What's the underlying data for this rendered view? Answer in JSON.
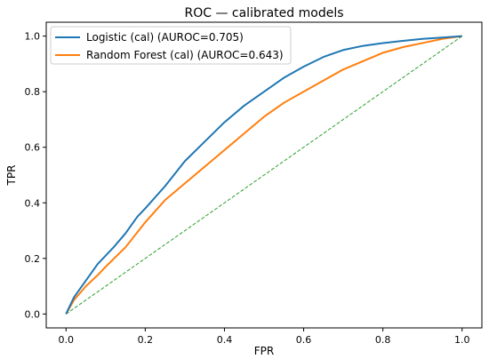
{
  "chart_data": {
    "type": "line",
    "title": "ROC — calibrated models",
    "xlabel": "FPR",
    "ylabel": "TPR",
    "xlim": [
      -0.05,
      1.05
    ],
    "ylim": [
      -0.05,
      1.05
    ],
    "xticks": [
      "0.0",
      "0.2",
      "0.4",
      "0.6",
      "0.8",
      "1.0"
    ],
    "yticks": [
      "0.0",
      "0.2",
      "0.4",
      "0.6",
      "0.8",
      "1.0"
    ],
    "grid": false,
    "legend_position": "upper-left",
    "series": [
      {
        "name": "Logistic (cal) (AUROC=0.705)",
        "color": "#1f77b4",
        "linestyle": "solid",
        "x": [
          0.0,
          0.02,
          0.05,
          0.08,
          0.1,
          0.12,
          0.15,
          0.18,
          0.2,
          0.25,
          0.3,
          0.35,
          0.4,
          0.45,
          0.5,
          0.55,
          0.6,
          0.65,
          0.7,
          0.75,
          0.8,
          0.85,
          0.9,
          0.95,
          1.0
        ],
        "y": [
          0.0,
          0.06,
          0.12,
          0.18,
          0.21,
          0.24,
          0.29,
          0.35,
          0.38,
          0.46,
          0.55,
          0.62,
          0.69,
          0.75,
          0.8,
          0.85,
          0.89,
          0.925,
          0.95,
          0.965,
          0.975,
          0.983,
          0.99,
          0.995,
          1.0
        ]
      },
      {
        "name": "Random Forest (cal) (AUROC=0.643)",
        "color": "#ff7f0e",
        "linestyle": "solid",
        "x": [
          0.0,
          0.02,
          0.05,
          0.08,
          0.1,
          0.15,
          0.2,
          0.25,
          0.3,
          0.35,
          0.4,
          0.45,
          0.5,
          0.55,
          0.6,
          0.65,
          0.7,
          0.75,
          0.8,
          0.85,
          0.9,
          0.95,
          1.0
        ],
        "y": [
          0.0,
          0.05,
          0.1,
          0.14,
          0.17,
          0.24,
          0.33,
          0.41,
          0.47,
          0.53,
          0.59,
          0.65,
          0.71,
          0.76,
          0.8,
          0.84,
          0.88,
          0.91,
          0.94,
          0.96,
          0.975,
          0.99,
          1.0
        ]
      },
      {
        "color": "#2ca02c",
        "linestyle": "dashed",
        "x": [
          0.0,
          1.0
        ],
        "y": [
          0.0,
          1.0
        ]
      }
    ]
  }
}
